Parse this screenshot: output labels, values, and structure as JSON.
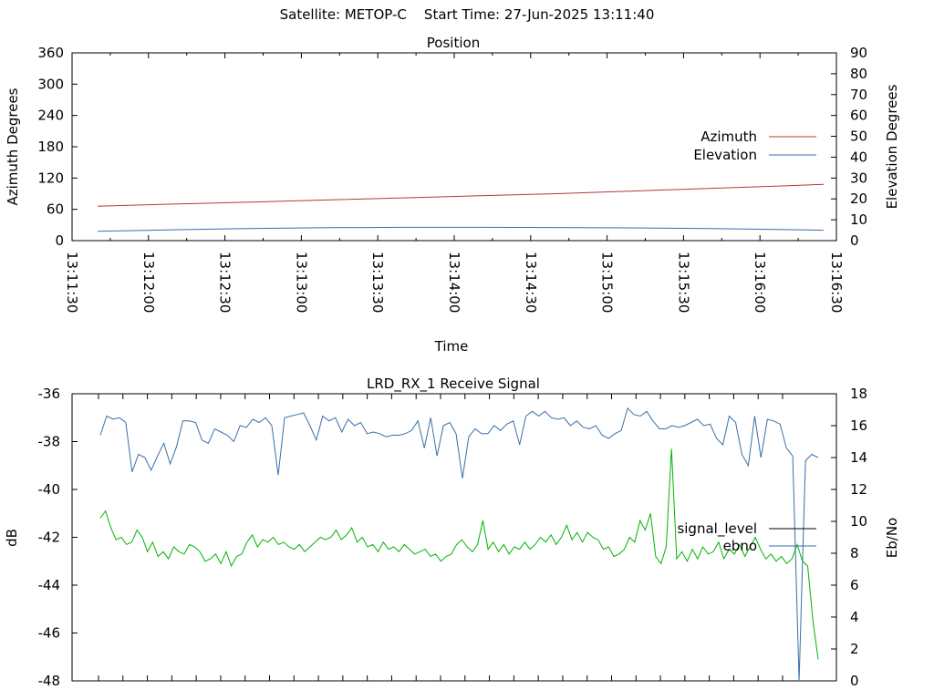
{
  "header": {
    "title": "Satellite: METOP-C    Start Time: 27-Jun-2025 13:11:40"
  },
  "chart_data": [
    {
      "type": "line",
      "title": "Position",
      "xlabel": "Time",
      "ylabel": "Azimuth Degrees",
      "y2label": "Elevation Degrees",
      "x_ticks": [
        "13:11:30",
        "13:12:00",
        "13:12:30",
        "13:13:00",
        "13:13:30",
        "13:14:00",
        "13:14:30",
        "13:15:00",
        "13:15:30",
        "13:16:00",
        "13:16:30"
      ],
      "xlim": [
        "13:11:30",
        "13:16:30"
      ],
      "ylim": [
        0,
        360
      ],
      "y_ticks": [
        0,
        60,
        120,
        180,
        240,
        300,
        360
      ],
      "y2lim": [
        0,
        90
      ],
      "y2_ticks": [
        0,
        10,
        20,
        30,
        40,
        50,
        60,
        70,
        80,
        90
      ],
      "grid": false,
      "legend_position": "right",
      "series": [
        {
          "name": "Azimuth",
          "axis": "left",
          "color": "#b03a3a",
          "x": [
            "13:11:40",
            "13:12:10",
            "13:12:40",
            "13:13:10",
            "13:13:40",
            "13:14:10",
            "13:14:40",
            "13:15:10",
            "13:15:40",
            "13:16:10",
            "13:16:25"
          ],
          "values": [
            66,
            70,
            74,
            78,
            82,
            86,
            90,
            95,
            100,
            105,
            108
          ]
        },
        {
          "name": "Elevation",
          "axis": "right",
          "color": "#3a6fa8",
          "x": [
            "13:11:40",
            "13:12:10",
            "13:12:40",
            "13:13:10",
            "13:13:40",
            "13:14:10",
            "13:14:40",
            "13:15:10",
            "13:15:40",
            "13:16:10",
            "13:16:25"
          ],
          "values": [
            4.5,
            5.2,
            5.8,
            6.2,
            6.4,
            6.4,
            6.3,
            6.1,
            5.8,
            5.3,
            5.0
          ]
        }
      ]
    },
    {
      "type": "line",
      "title": "LRD_RX_1 Receive Signal",
      "xlabel": "",
      "ylabel": "dB",
      "y2label": "Eb/No",
      "ylim": [
        -48,
        -36
      ],
      "y_ticks": [
        -36,
        -38,
        -40,
        -42,
        -44,
        -46,
        -48
      ],
      "y2lim": [
        0,
        18
      ],
      "y2_ticks": [
        0,
        2,
        4,
        6,
        8,
        10,
        12,
        14,
        16,
        18
      ],
      "x_tick_count": 29,
      "grid": false,
      "legend_position": "right",
      "series": [
        {
          "name": "signal_level",
          "axis": "left",
          "color": "#00b400",
          "values": [
            -41.2,
            -40.9,
            -41.6,
            -42.1,
            -42.0,
            -42.3,
            -42.2,
            -41.7,
            -42.0,
            -42.6,
            -42.2,
            -42.8,
            -42.6,
            -42.9,
            -42.4,
            -42.6,
            -42.7,
            -42.3,
            -42.4,
            -42.6,
            -43.0,
            -42.9,
            -42.7,
            -43.1,
            -42.6,
            -43.2,
            -42.8,
            -42.7,
            -42.2,
            -41.9,
            -42.4,
            -42.1,
            -42.2,
            -42.0,
            -42.3,
            -42.2,
            -42.4,
            -42.5,
            -42.3,
            -42.6,
            -42.4,
            -42.2,
            -42.0,
            -42.1,
            -42.0,
            -41.7,
            -42.1,
            -41.9,
            -41.6,
            -42.2,
            -42.0,
            -42.4,
            -42.3,
            -42.6,
            -42.2,
            -42.5,
            -42.4,
            -42.6,
            -42.3,
            -42.5,
            -42.7,
            -42.6,
            -42.5,
            -42.8,
            -42.7,
            -43.0,
            -42.8,
            -42.7,
            -42.3,
            -42.1,
            -42.4,
            -42.6,
            -42.3,
            -41.3,
            -42.5,
            -42.2,
            -42.6,
            -42.3,
            -42.7,
            -42.4,
            -42.5,
            -42.2,
            -42.5,
            -42.3,
            -42.0,
            -42.2,
            -41.9,
            -42.3,
            -42.0,
            -41.5,
            -42.1,
            -41.8,
            -42.2,
            -41.8,
            -42.0,
            -42.1,
            -42.5,
            -42.4,
            -42.8,
            -42.7,
            -42.5,
            -42.0,
            -42.2,
            -41.3,
            -41.7,
            -41.0,
            -42.8,
            -43.1,
            -42.4,
            -38.3,
            -42.9,
            -42.6,
            -43.0,
            -42.5,
            -42.9,
            -42.4,
            -42.7,
            -42.6,
            -42.2,
            -42.9,
            -42.5,
            -42.7,
            -42.3,
            -42.8,
            -42.4,
            -42.0,
            -42.5,
            -42.9,
            -42.7,
            -43.0,
            -42.8,
            -43.1,
            -42.9,
            -42.3,
            -43.0,
            -43.2,
            -45.5,
            -47.1
          ]
        },
        {
          "name": "ebno",
          "axis": "right",
          "color": "#3a6fa8",
          "values": [
            15.4,
            16.6,
            16.4,
            16.5,
            16.2,
            13.1,
            14.2,
            14.0,
            13.2,
            14.1,
            14.9,
            13.6,
            14.7,
            16.3,
            16.3,
            16.2,
            15.1,
            14.9,
            15.8,
            15.6,
            15.4,
            15.0,
            16.0,
            15.9,
            16.4,
            16.2,
            16.5,
            16.0,
            12.9,
            16.5,
            16.6,
            16.7,
            16.8,
            16.0,
            15.1,
            16.6,
            16.3,
            16.5,
            15.6,
            16.4,
            16.0,
            16.2,
            15.5,
            15.6,
            15.5,
            15.3,
            15.4,
            15.4,
            15.5,
            15.7,
            16.3,
            14.6,
            16.5,
            14.1,
            16.0,
            16.2,
            15.5,
            12.7,
            15.3,
            15.8,
            15.5,
            15.5,
            16.0,
            15.7,
            16.1,
            16.3,
            14.8,
            16.6,
            16.9,
            16.6,
            16.9,
            16.5,
            16.4,
            16.5,
            16.0,
            16.3,
            15.9,
            15.8,
            16.0,
            15.4,
            15.2,
            15.5,
            15.7,
            17.1,
            16.7,
            16.6,
            16.9,
            16.3,
            15.8,
            15.8,
            16.0,
            15.9,
            16.0,
            16.2,
            16.4,
            16.0,
            16.1,
            15.2,
            14.8,
            16.6,
            16.2,
            14.2,
            13.5,
            16.6,
            14.0,
            16.4,
            16.3,
            16.1,
            14.6,
            14.1,
            0.0,
            13.8,
            14.2,
            14.0
          ]
        }
      ]
    }
  ]
}
